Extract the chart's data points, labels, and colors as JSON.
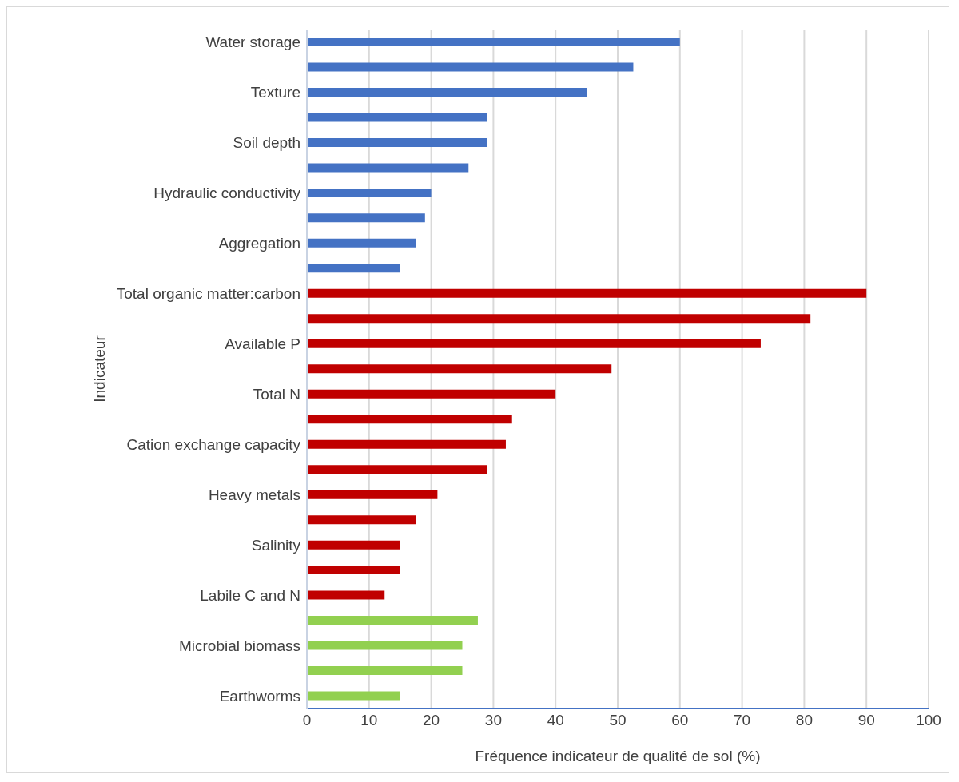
{
  "chart_data": {
    "type": "bar",
    "orientation": "horizontal",
    "xlabel": "Fréquence indicateur de qualité de sol (%)",
    "ylabel": "Indicateur",
    "categories": [
      "Water storage",
      null,
      "Texture",
      null,
      "Soil depth",
      null,
      "Hydraulic conductivity",
      null,
      "Aggregation",
      null,
      "Total organic matter:carbon",
      null,
      "Available P",
      null,
      "Total N",
      null,
      "Cation exchange capacity",
      null,
      "Heavy metals",
      null,
      "Salinity",
      null,
      "Labile C and N",
      null,
      "Microbial biomass",
      null,
      "Earthworms"
    ],
    "values": [
      60,
      52.5,
      45,
      29,
      29,
      26,
      20,
      19,
      17.5,
      15,
      90,
      81,
      73,
      49,
      40,
      33,
      32,
      29,
      21,
      17.5,
      15,
      15,
      12.5,
      27.5,
      25,
      25,
      15
    ],
    "colors": [
      "#4472c4",
      "#4472c4",
      "#4472c4",
      "#4472c4",
      "#4472c4",
      "#4472c4",
      "#4472c4",
      "#4472c4",
      "#4472c4",
      "#4472c4",
      "#c00000",
      "#c00000",
      "#c00000",
      "#c00000",
      "#c00000",
      "#c00000",
      "#c00000",
      "#c00000",
      "#c00000",
      "#c00000",
      "#c00000",
      "#c00000",
      "#c00000",
      "#92d050",
      "#92d050",
      "#92d050",
      "#92d050"
    ],
    "xlim": [
      0,
      100
    ],
    "xticks": [
      0,
      10,
      20,
      30,
      40,
      50,
      60,
      70,
      80,
      90,
      100
    ],
    "grid": "x"
  }
}
